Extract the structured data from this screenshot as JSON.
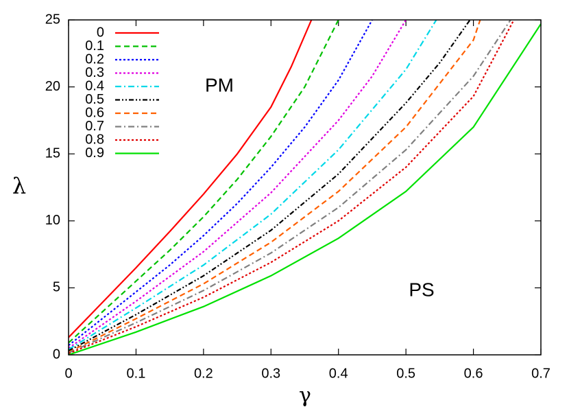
{
  "chart_data": {
    "type": "line",
    "xlabel": "γ",
    "ylabel": "λ",
    "annotations": [
      "PM",
      "PS"
    ],
    "xlim": [
      0,
      0.7
    ],
    "ylim": [
      0,
      25
    ],
    "xticks": [
      0,
      0.1,
      0.2,
      0.3,
      0.4,
      0.5,
      0.6,
      0.7
    ],
    "yticks": [
      0,
      5,
      10,
      15,
      20,
      25
    ],
    "legend": "top-left",
    "series": [
      {
        "name": "0",
        "color": "#ff0000",
        "dash": "solid",
        "x": [
          0,
          0.05,
          0.1,
          0.15,
          0.2,
          0.25,
          0.3,
          0.33,
          0.36
        ],
        "values": [
          1.3,
          3.9,
          6.5,
          9.2,
          12.0,
          15.0,
          18.5,
          21.5,
          25
        ]
      },
      {
        "name": "0.1",
        "color": "#00c000",
        "dash": "dashed",
        "x": [
          0,
          0.05,
          0.1,
          0.15,
          0.2,
          0.25,
          0.3,
          0.35,
          0.4
        ],
        "values": [
          0.9,
          3.2,
          5.5,
          7.8,
          10.3,
          13.1,
          16.3,
          20.0,
          25
        ]
      },
      {
        "name": "0.2",
        "color": "#0000ff",
        "dash": "dotted",
        "x": [
          0,
          0.05,
          0.1,
          0.15,
          0.2,
          0.25,
          0.3,
          0.35,
          0.4,
          0.45
        ],
        "values": [
          0.7,
          2.7,
          4.7,
          6.7,
          8.9,
          11.3,
          14.0,
          17.0,
          20.5,
          25
        ]
      },
      {
        "name": "0.3",
        "color": "#e000e0",
        "dash": "dotted",
        "x": [
          0,
          0.1,
          0.2,
          0.3,
          0.4,
          0.45,
          0.5
        ],
        "values": [
          0.5,
          4.0,
          7.7,
          12.1,
          17.5,
          20.8,
          25
        ]
      },
      {
        "name": "0.4",
        "color": "#00d8e8",
        "dash": "dashdot",
        "x": [
          0,
          0.1,
          0.2,
          0.3,
          0.4,
          0.5,
          0.545
        ],
        "values": [
          0.4,
          3.5,
          6.7,
          10.5,
          15.3,
          21.3,
          25
        ]
      },
      {
        "name": "0.5",
        "color": "#000000",
        "dash": "dashdotdot",
        "x": [
          0,
          0.1,
          0.2,
          0.3,
          0.4,
          0.5,
          0.55,
          0.595
        ],
        "values": [
          0.3,
          3.0,
          5.9,
          9.3,
          13.5,
          18.8,
          21.8,
          25
        ]
      },
      {
        "name": "0.6",
        "color": "#ff6000",
        "dash": "dashed",
        "x": [
          0,
          0.1,
          0.2,
          0.3,
          0.4,
          0.5,
          0.6,
          0.61
        ],
        "values": [
          0.2,
          2.7,
          5.3,
          8.4,
          12.2,
          17.0,
          23.5,
          25
        ]
      },
      {
        "name": "0.7",
        "color": "#808080",
        "dash": "dashdot",
        "x": [
          0,
          0.1,
          0.2,
          0.3,
          0.4,
          0.5,
          0.6,
          0.655
        ],
        "values": [
          0.15,
          2.4,
          4.8,
          7.6,
          11.0,
          15.3,
          20.8,
          25
        ]
      },
      {
        "name": "0.8",
        "color": "#e00000",
        "dash": "dotted",
        "x": [
          0,
          0.1,
          0.2,
          0.3,
          0.4,
          0.5,
          0.6,
          0.66
        ],
        "values": [
          0.1,
          2.1,
          4.3,
          6.9,
          10.0,
          14.0,
          19.3,
          25
        ]
      },
      {
        "name": "0.9",
        "color": "#00e000",
        "dash": "solid",
        "x": [
          0,
          0.1,
          0.2,
          0.3,
          0.4,
          0.5,
          0.6,
          0.7
        ],
        "values": [
          0,
          1.7,
          3.6,
          5.9,
          8.7,
          12.2,
          17.0,
          24.7
        ]
      }
    ]
  }
}
